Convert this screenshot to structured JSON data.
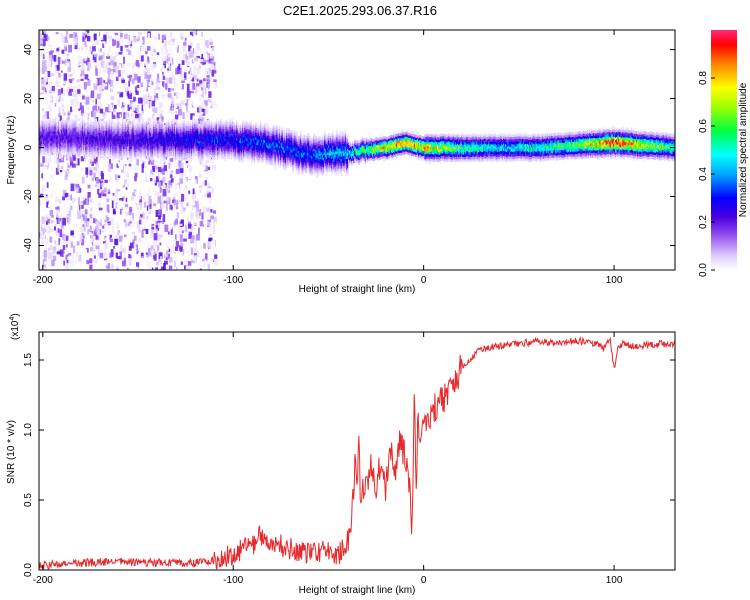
{
  "title": "C2E1.2025.293.06.37.R16",
  "chart_data": [
    {
      "type": "heatmap",
      "xlabel": "Height of straight line (km)",
      "ylabel": "Frequency (Hz)",
      "xlim": [
        -202,
        132
      ],
      "ylim": [
        -50,
        48
      ],
      "x_ticks": [
        -200,
        -100,
        0,
        100
      ],
      "y_ticks": [
        -40,
        -20,
        0,
        20,
        40
      ],
      "colorbar": {
        "label": "Normalized spectral amplitude",
        "range": [
          0,
          1
        ],
        "ticks": [
          "0.0",
          "0.2",
          "0.4",
          "0.6",
          "0.8"
        ],
        "colormap": [
          "#ffffff",
          "#e6d9ff",
          "#b48cff",
          "#7a2cf0",
          "#3a00d8",
          "#0000ff",
          "#00a0ff",
          "#00ffff",
          "#00ff60",
          "#80ff00",
          "#ffff00",
          "#ff8000",
          "#ff0000",
          "#ff1a6e"
        ]
      },
      "ridge": {
        "x": [
          -200,
          -180,
          -160,
          -140,
          -120,
          -100,
          -80,
          -60,
          -40,
          -30,
          -20,
          -10,
          0,
          20,
          40,
          60,
          80,
          100,
          132
        ],
        "frequency_hz": [
          4,
          4,
          3,
          3,
          3,
          3,
          1,
          -3,
          -2,
          -1,
          0,
          2,
          0,
          0,
          0,
          0,
          1,
          2,
          0
        ],
        "amplitude": [
          0.3,
          0.3,
          0.32,
          0.35,
          0.4,
          0.42,
          0.45,
          0.45,
          0.55,
          0.7,
          0.85,
          0.9,
          0.85,
          0.65,
          0.55,
          0.6,
          0.7,
          0.98,
          0.6
        ]
      },
      "noise_region_x": [
        -200,
        -110
      ]
    },
    {
      "type": "line",
      "xlabel": "Height of straight line (km)",
      "ylabel": "SNR (10 * v/v)",
      "multiplier_label": "(x10",
      "multiplier_exp": "4",
      "multiplier_close": ")",
      "xlim": [
        -202,
        132
      ],
      "ylim": [
        0,
        1.7
      ],
      "x_ticks": [
        -200,
        -100,
        0,
        100
      ],
      "y_ticks": [
        "0.0",
        "0.5",
        "1.0",
        "1.5"
      ],
      "series": [
        {
          "color": "#e8282a",
          "x": [
            -202,
            -180,
            -160,
            -140,
            -120,
            -110,
            -100,
            -90,
            -85,
            -80,
            -70,
            -60,
            -50,
            -45,
            -40,
            -38,
            -36,
            -35,
            -34,
            -33,
            -32,
            -30,
            -28,
            -25,
            -22,
            -20,
            -18,
            -15,
            -12,
            -10,
            -8,
            -6,
            -5,
            -4,
            -3,
            -2,
            0,
            5,
            10,
            15,
            20,
            25,
            30,
            40,
            50,
            60,
            70,
            80,
            90,
            95,
            98,
            100,
            102,
            105,
            110,
            120,
            132
          ],
          "y": [
            0.03,
            0.05,
            0.06,
            0.05,
            0.05,
            0.07,
            0.12,
            0.18,
            0.25,
            0.2,
            0.15,
            0.12,
            0.14,
            0.1,
            0.2,
            0.4,
            0.75,
            0.6,
            0.9,
            0.45,
            0.55,
            0.65,
            0.72,
            0.6,
            0.78,
            0.55,
            0.88,
            0.72,
            0.95,
            0.8,
            0.65,
            0.3,
            1.3,
            0.6,
            1.05,
            0.9,
            1.05,
            1.15,
            1.22,
            1.32,
            1.45,
            1.52,
            1.58,
            1.6,
            1.62,
            1.63,
            1.62,
            1.64,
            1.62,
            1.58,
            1.66,
            1.42,
            1.6,
            1.62,
            1.6,
            1.61,
            1.62
          ]
        }
      ]
    }
  ]
}
